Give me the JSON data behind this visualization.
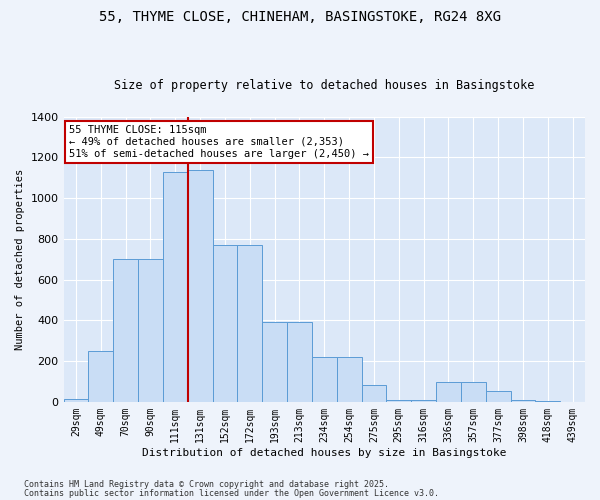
{
  "title1": "55, THYME CLOSE, CHINEHAM, BASINGSTOKE, RG24 8XG",
  "title2": "Size of property relative to detached houses in Basingstoke",
  "xlabel": "Distribution of detached houses by size in Basingstoke",
  "ylabel": "Number of detached properties",
  "bar_labels": [
    "29sqm",
    "49sqm",
    "70sqm",
    "90sqm",
    "111sqm",
    "131sqm",
    "152sqm",
    "172sqm",
    "193sqm",
    "213sqm",
    "234sqm",
    "254sqm",
    "275sqm",
    "295sqm",
    "316sqm",
    "336sqm",
    "357sqm",
    "377sqm",
    "398sqm",
    "418sqm",
    "439sqm"
  ],
  "bar_values": [
    15,
    250,
    700,
    700,
    1130,
    1140,
    770,
    770,
    390,
    390,
    220,
    220,
    85,
    10,
    10,
    95,
    95,
    55,
    10,
    5,
    0
  ],
  "bar_color": "#c9ddf5",
  "bar_edge_color": "#5b9bd5",
  "vline_x": 4.5,
  "vline_color": "#c00000",
  "annotation_text": "55 THYME CLOSE: 115sqm\n← 49% of detached houses are smaller (2,353)\n51% of semi-detached houses are larger (2,450) →",
  "annotation_box_color": "#ffffff",
  "annotation_box_edge": "#c00000",
  "ylim": [
    0,
    1400
  ],
  "yticks": [
    0,
    200,
    400,
    600,
    800,
    1000,
    1200,
    1400
  ],
  "background_color": "#dce8f8",
  "fig_background": "#eef3fb",
  "grid_color": "#ffffff",
  "footer1": "Contains HM Land Registry data © Crown copyright and database right 2025.",
  "footer2": "Contains public sector information licensed under the Open Government Licence v3.0."
}
